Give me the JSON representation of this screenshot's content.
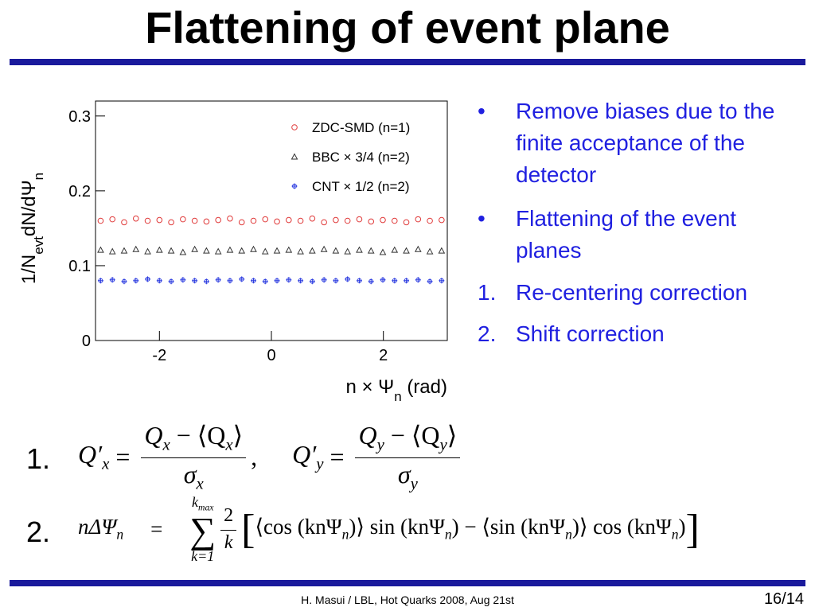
{
  "header": {
    "title": "Flattening of event plane"
  },
  "chart_data": {
    "type": "scatter",
    "ylabel": {
      "a": "1/N",
      "b": "evt",
      "c": "dN/dΨ",
      "d": "n"
    },
    "xlabel": {
      "a": "n × Ψ",
      "b": "n",
      "c": " (rad)"
    },
    "xlim": [
      -3.1416,
      3.1416
    ],
    "ylim": [
      0,
      0.32
    ],
    "xticks": [
      -2,
      0,
      2
    ],
    "yticks": [
      0,
      0.1,
      0.2,
      0.3
    ],
    "legend": "upper right",
    "x": [
      -3.05,
      -2.84,
      -2.63,
      -2.42,
      -2.21,
      -2.0,
      -1.79,
      -1.58,
      -1.37,
      -1.16,
      -0.95,
      -0.74,
      -0.53,
      -0.32,
      -0.11,
      0.1,
      0.31,
      0.52,
      0.73,
      0.94,
      1.15,
      1.36,
      1.57,
      1.78,
      1.99,
      2.2,
      2.41,
      2.62,
      2.83,
      3.04
    ],
    "series": [
      {
        "name": "ZDC-SMD (n=1)",
        "color": "#e03a3a",
        "marker": "circle",
        "values": [
          0.16,
          0.162,
          0.158,
          0.163,
          0.16,
          0.161,
          0.158,
          0.162,
          0.16,
          0.159,
          0.161,
          0.163,
          0.158,
          0.16,
          0.162,
          0.159,
          0.161,
          0.16,
          0.163,
          0.158,
          0.161,
          0.16,
          0.162,
          0.159,
          0.161,
          0.16,
          0.158,
          0.162,
          0.16,
          0.161
        ]
      },
      {
        "name": "BBC × 3/4 (n=2)",
        "color": "#333333",
        "marker": "triangle",
        "values": [
          0.121,
          0.119,
          0.12,
          0.122,
          0.119,
          0.121,
          0.12,
          0.118,
          0.122,
          0.12,
          0.119,
          0.121,
          0.12,
          0.122,
          0.119,
          0.12,
          0.121,
          0.119,
          0.12,
          0.122,
          0.12,
          0.119,
          0.121,
          0.12,
          0.118,
          0.121,
          0.12,
          0.122,
          0.119,
          0.12
        ]
      },
      {
        "name": "CNT × 1/2 (n=2)",
        "color": "#2a3ae0",
        "marker": "cross",
        "values": [
          0.08,
          0.081,
          0.079,
          0.08,
          0.082,
          0.08,
          0.079,
          0.081,
          0.08,
          0.079,
          0.081,
          0.08,
          0.082,
          0.08,
          0.079,
          0.08,
          0.081,
          0.08,
          0.079,
          0.081,
          0.08,
          0.082,
          0.08,
          0.079,
          0.081,
          0.08,
          0.08,
          0.081,
          0.079,
          0.08
        ]
      }
    ]
  },
  "bullets": [
    {
      "marker": "•",
      "text": "Remove biases due to the finite acceptance of the detector"
    },
    {
      "marker": "•",
      "text": "Flattening of the event planes"
    },
    {
      "marker": "1.",
      "text": "Re-centering correction"
    },
    {
      "marker": "2.",
      "text": "Shift correction"
    }
  ],
  "eq1": {
    "number": "1.",
    "lhs_a": "Q′",
    "lhs_a_sub": "x",
    "equals": "=",
    "num_a": "Q",
    "num_a_sub": "x",
    "num_a_mid": " − ⟨Q",
    "num_a_sub2": "x",
    "num_a_end": "⟩",
    "den_a": "σ",
    "den_a_sub": "x",
    "comma": ",",
    "lhs_b": "Q′",
    "lhs_b_sub": "y",
    "equals_b": "=",
    "num_b": "Q",
    "num_b_sub": "y",
    "num_b_mid": " − ⟨Q",
    "num_b_sub2": "y",
    "num_b_end": "⟩",
    "den_b": "σ",
    "den_b_sub": "y"
  },
  "eq2": {
    "number": "2.",
    "lhs": "nΔΨ",
    "lhs_sub": "n",
    "equals": "=",
    "sum": "∑",
    "sum_top": "k",
    "sum_top_sub": "max",
    "sum_bottom": "k=1",
    "frac_num": "2",
    "frac_den": "k",
    "open": "[",
    "t1": "⟨cos (knΨ",
    "s1": "n",
    "t2": ")⟩ sin (knΨ",
    "s2": "n",
    "t3": ") − ⟨sin (knΨ",
    "s3": "n",
    "t4": ")⟩ cos (knΨ",
    "s4": "n",
    "t5": ")",
    "close": "]"
  },
  "footer": {
    "text": "H. Masui / LBL,  Hot Quarks 2008, Aug 21st",
    "page": "16/14"
  }
}
